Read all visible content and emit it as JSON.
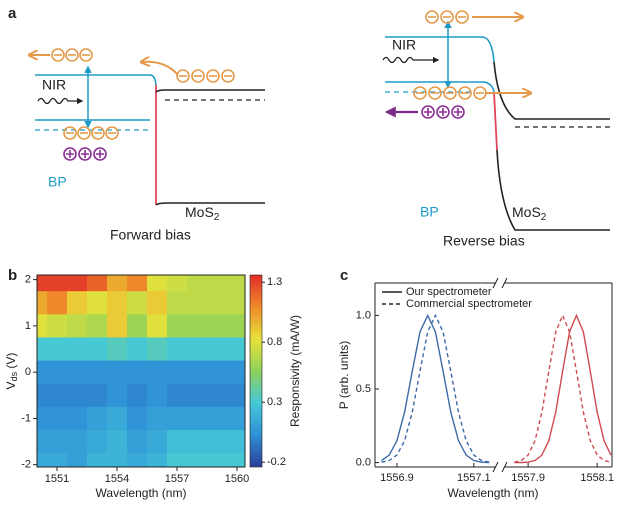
{
  "panel_labels": [
    "a",
    "b",
    "c"
  ],
  "diagram": {
    "left": {
      "nir": "NIR",
      "material1": "BP",
      "material2": "MoS",
      "material2_sub": "2",
      "caption": "Forward bias"
    },
    "right": {
      "nir": "NIR",
      "material1": "BP",
      "material2": "MoS",
      "material2_sub": "2",
      "caption": "Reverse bias"
    }
  },
  "chart_data": [
    {
      "type": "heatmap",
      "xlabel": "Wavelength (nm)",
      "ylabel": {
        "main": "V",
        "sub": "ds",
        "unit": " (V)"
      },
      "colorbar_label": "Responsivity (mA/W)",
      "x": [
        1550,
        1551,
        1552,
        1553,
        1554,
        1555,
        1556,
        1557,
        1558,
        1559,
        1560
      ],
      "y": [
        2,
        1.5,
        1,
        0.5,
        0,
        -0.5,
        -1,
        -1.5,
        -2
      ],
      "z": [
        [
          1.3,
          1.3,
          1.3,
          1.2,
          1.0,
          1.1,
          0.8,
          0.75,
          0.7,
          0.7,
          0.7
        ],
        [
          1.0,
          1.1,
          0.9,
          0.8,
          0.9,
          0.75,
          0.9,
          0.7,
          0.7,
          0.7,
          0.7
        ],
        [
          0.8,
          0.75,
          0.7,
          0.65,
          0.9,
          0.6,
          0.8,
          0.6,
          0.6,
          0.6,
          0.6
        ],
        [
          0.3,
          0.3,
          0.3,
          0.3,
          0.35,
          0.3,
          0.35,
          0.3,
          0.3,
          0.3,
          0.3
        ],
        [
          0.05,
          0.05,
          0.05,
          0.05,
          0.05,
          0.05,
          0.05,
          0.05,
          0.05,
          0.05,
          0.05
        ],
        [
          0.0,
          0.0,
          0.0,
          0.0,
          0.05,
          0.0,
          0.05,
          0.0,
          0.0,
          0.0,
          0.0
        ],
        [
          0.05,
          0.05,
          0.05,
          0.1,
          0.15,
          0.05,
          0.1,
          0.1,
          0.1,
          0.1,
          0.1
        ],
        [
          0.1,
          0.1,
          0.1,
          0.15,
          0.2,
          0.1,
          0.15,
          0.25,
          0.25,
          0.25,
          0.25
        ],
        [
          0.15,
          0.15,
          0.1,
          0.2,
          0.2,
          0.15,
          0.2,
          0.3,
          0.3,
          0.3,
          0.3
        ]
      ],
      "xlim": [
        1550,
        1560.4
      ],
      "ylim": [
        -2.05,
        2.1
      ],
      "xticks": [
        1551,
        1554,
        1557,
        1560
      ],
      "yticks": [
        -2,
        -1,
        0,
        1,
        2
      ],
      "zlim": [
        -0.24,
        1.36
      ],
      "zticks": [
        -0.2,
        0.3,
        0.8,
        1.3
      ],
      "colormap": [
        "#2c3f99",
        "#2f8fd6",
        "#45c8d8",
        "#8fd15a",
        "#e8e23a",
        "#ee8a2a",
        "#e32b27"
      ]
    },
    {
      "type": "line",
      "xlabel": "Wavelength (nm)",
      "ylabel": "P (arb. units)",
      "broken_x": true,
      "segments": [
        {
          "xlim": [
            1556.843,
            1557.155
          ],
          "xticks": [
            1556.9,
            1557.1
          ]
        },
        {
          "xlim": [
            1557.833,
            1558.143
          ],
          "xticks": [
            1557.9,
            1558.1
          ]
        }
      ],
      "ylim": [
        -0.03,
        1.22
      ],
      "yticks": [
        {
          "value": 0,
          "label": "0.0"
        },
        {
          "value": 0.5,
          "label": "0.5"
        },
        {
          "value": 1,
          "label": "1.0"
        }
      ],
      "legend": [
        {
          "label": "Our spectrometer",
          "dash": "solid"
        },
        {
          "label": "Commercial spectrometer",
          "dash": "dashed"
        }
      ],
      "series": [
        {
          "segment": 0,
          "color": "#3b6aa8",
          "dash": "solid",
          "x": [
            1556.86,
            1556.88,
            1556.9,
            1556.92,
            1556.94,
            1556.96,
            1556.98,
            1557.0,
            1557.02,
            1557.04,
            1557.06,
            1557.08,
            1557.1,
            1557.12,
            1557.14
          ],
          "values": [
            0.014,
            0.051,
            0.149,
            0.343,
            0.621,
            0.888,
            1,
            0.888,
            0.621,
            0.343,
            0.149,
            0.051,
            0.014,
            0.003,
            0.0
          ]
        },
        {
          "segment": 0,
          "color": "#3b6aa8",
          "dash": "dashed",
          "x": [
            1556.86,
            1556.88,
            1556.9,
            1556.92,
            1556.94,
            1556.96,
            1556.98,
            1557.0,
            1557.02,
            1557.04,
            1557.06,
            1557.08,
            1557.1,
            1557.12,
            1557.14
          ],
          "values": [
            0.003,
            0.014,
            0.051,
            0.149,
            0.343,
            0.621,
            0.888,
            1,
            0.888,
            0.621,
            0.343,
            0.149,
            0.051,
            0.014,
            0.003
          ]
        },
        {
          "segment": 1,
          "color": "#d04a52",
          "dash": "dashed",
          "x": [
            1557.86,
            1557.88,
            1557.9,
            1557.92,
            1557.94,
            1557.96,
            1557.98,
            1558.0,
            1558.02,
            1558.04,
            1558.06,
            1558.08,
            1558.1,
            1558.12,
            1558.14
          ],
          "values": [
            0.003,
            0.014,
            0.051,
            0.149,
            0.343,
            0.621,
            0.888,
            1,
            0.888,
            0.621,
            0.343,
            0.149,
            0.051,
            0.014,
            0.003
          ]
        },
        {
          "segment": 1,
          "color": "#d04a52",
          "dash": "solid",
          "x": [
            1557.86,
            1557.88,
            1557.9,
            1557.92,
            1557.94,
            1557.96,
            1557.98,
            1558.0,
            1558.02,
            1558.04,
            1558.06,
            1558.08,
            1558.1,
            1558.12,
            1558.14
          ],
          "values": [
            0.0,
            0.0,
            0.003,
            0.014,
            0.051,
            0.149,
            0.343,
            0.621,
            0.888,
            1,
            0.888,
            0.621,
            0.343,
            0.149,
            0.051
          ]
        }
      ]
    }
  ]
}
